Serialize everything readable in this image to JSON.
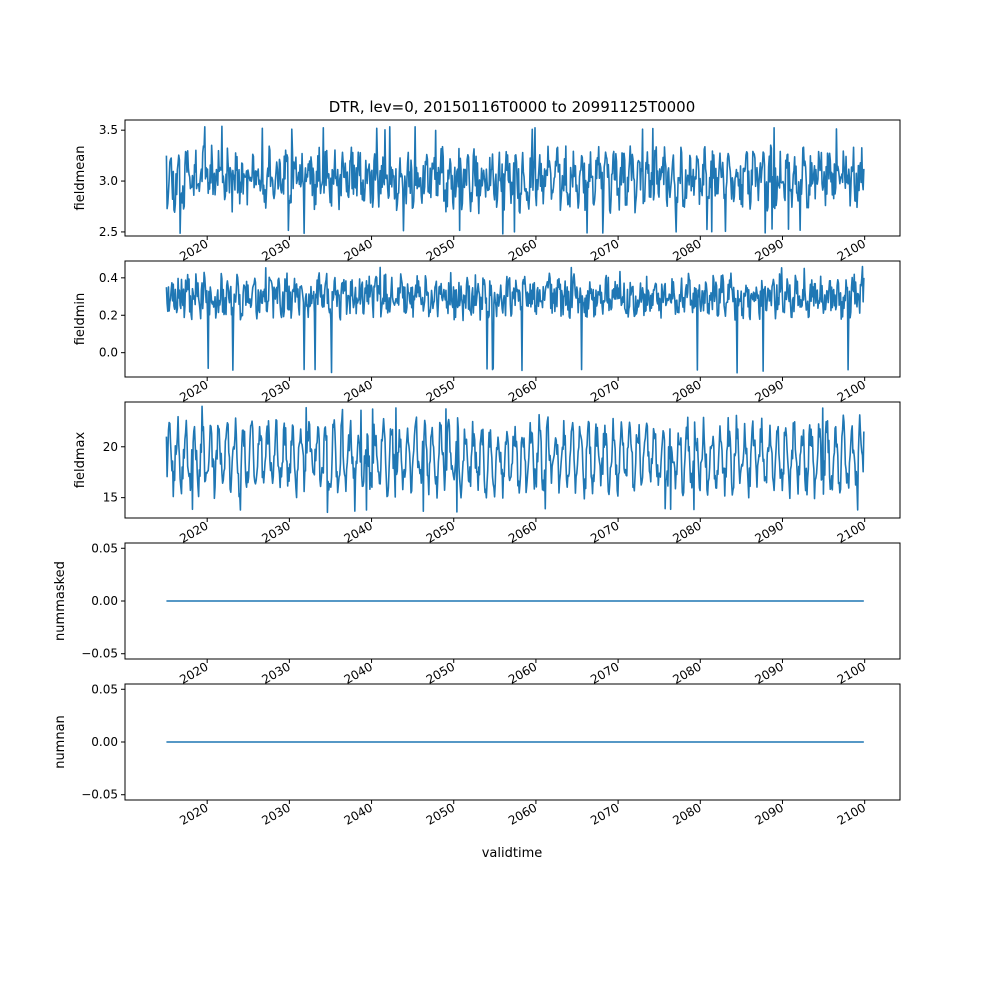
{
  "figure": {
    "title": "DTR, lev=0, 20150116T0000 to 20991125T0000",
    "xlabel": "validtime",
    "line_color": "#1f77b4"
  },
  "chart_data": [
    {
      "type": "line",
      "ylabel": "fieldmean",
      "xlim": [
        2010.0,
        2104.3
      ],
      "ylim": [
        2.46,
        3.6
      ],
      "yticks": [
        2.5,
        3.0,
        3.5
      ],
      "ytick_labels": [
        "2.5",
        "3.0",
        "3.5"
      ],
      "xticks": [
        2020,
        2030,
        2040,
        2050,
        2060,
        2070,
        2080,
        2090,
        2100
      ],
      "xtick_labels": [
        "2020",
        "2030",
        "2040",
        "2050",
        "2060",
        "2070",
        "2080",
        "2090",
        "2100"
      ],
      "x_start": 2015.04,
      "x_end": 2099.9,
      "y_min": 2.48,
      "y_max": 3.54,
      "y_mean": 3.02,
      "y_start": 3.25,
      "y_end": 3.12
    },
    {
      "type": "line",
      "ylabel": "fieldmin",
      "xlim": [
        2010.0,
        2104.3
      ],
      "ylim": [
        -0.13,
        0.49
      ],
      "yticks": [
        0.0,
        0.2,
        0.4
      ],
      "ytick_labels": [
        "0.0",
        "0.2",
        "0.4"
      ],
      "xticks": [
        2020,
        2030,
        2040,
        2050,
        2060,
        2070,
        2080,
        2090,
        2100
      ],
      "xtick_labels": [
        "2020",
        "2030",
        "2040",
        "2050",
        "2060",
        "2070",
        "2080",
        "2090",
        "2100"
      ],
      "x_start": 2015.04,
      "x_end": 2099.9,
      "y_min": -0.11,
      "y_max": 0.46,
      "y_mean": 0.3,
      "y_start": 0.35,
      "y_end": 0.4
    },
    {
      "type": "line",
      "ylabel": "fieldmax",
      "xlim": [
        2010.0,
        2104.3
      ],
      "ylim": [
        13.0,
        24.4
      ],
      "yticks": [
        15,
        20
      ],
      "ytick_labels": [
        "15",
        "20"
      ],
      "xticks": [
        2020,
        2030,
        2040,
        2050,
        2060,
        2070,
        2080,
        2090,
        2100
      ],
      "xtick_labels": [
        "2020",
        "2030",
        "2040",
        "2050",
        "2060",
        "2070",
        "2080",
        "2090",
        "2100"
      ],
      "x_start": 2015.04,
      "x_end": 2099.9,
      "y_min": 13.5,
      "y_max": 24.0,
      "y_mean": 19.0,
      "y_start": 21.0,
      "y_end": 21.5
    },
    {
      "type": "line",
      "ylabel": "nummasked",
      "xlim": [
        2010.0,
        2104.3
      ],
      "ylim": [
        -0.055,
        0.055
      ],
      "yticks": [
        -0.05,
        0.0,
        0.05
      ],
      "ytick_labels": [
        "−0.05",
        "0.00",
        "0.05"
      ],
      "xticks": [
        2020,
        2030,
        2040,
        2050,
        2060,
        2070,
        2080,
        2090,
        2100
      ],
      "xtick_labels": [
        "2020",
        "2030",
        "2040",
        "2050",
        "2060",
        "2070",
        "2080",
        "2090",
        "2100"
      ],
      "x": [
        2015.04,
        2099.9
      ],
      "y": [
        0.0,
        0.0
      ]
    },
    {
      "type": "line",
      "ylabel": "numnan",
      "xlim": [
        2010.0,
        2104.3
      ],
      "ylim": [
        -0.055,
        0.055
      ],
      "yticks": [
        -0.05,
        0.0,
        0.05
      ],
      "ytick_labels": [
        "−0.05",
        "0.00",
        "0.05"
      ],
      "xticks": [
        2020,
        2030,
        2040,
        2050,
        2060,
        2070,
        2080,
        2090,
        2100
      ],
      "xtick_labels": [
        "2020",
        "2030",
        "2040",
        "2050",
        "2060",
        "2070",
        "2080",
        "2090",
        "2100"
      ],
      "x": [
        2015.04,
        2099.9
      ],
      "y": [
        0.0,
        0.0
      ]
    }
  ]
}
